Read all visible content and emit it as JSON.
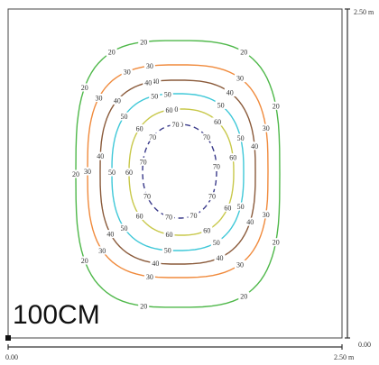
{
  "room_label": "100CM",
  "axis": {
    "x_min_label": "0.00",
    "x_max_label": "2.50 m",
    "y_min_label": "0.00",
    "y_max_label": "2.50 m"
  },
  "colors": {
    "frame": "#444444",
    "c20": "#4fb84a",
    "c30": "#f08a3c",
    "c40": "#8a5a3a",
    "c50": "#3fc8d8",
    "c60": "#c8c84a",
    "c70": "#3a3a8a"
  },
  "chart_data": {
    "type": "contour",
    "levels": [
      {
        "value": 20,
        "label": "20",
        "color": "#4fb84a",
        "dash": false
      },
      {
        "value": 30,
        "label": "30",
        "color": "#f08a3c",
        "dash": false
      },
      {
        "value": 40,
        "label": "40",
        "color": "#8a5a3a",
        "dash": false
      },
      {
        "value": 50,
        "label": "50",
        "color": "#3fc8d8",
        "dash": false
      },
      {
        "value": 60,
        "label": "60",
        "color": "#c8c84a",
        "dash": false
      },
      {
        "value": 70,
        "label": "70",
        "color": "#3a3a8a",
        "dash": true
      }
    ],
    "xlim": [
      0,
      2.5
    ],
    "ylim": [
      0,
      2.5
    ]
  }
}
